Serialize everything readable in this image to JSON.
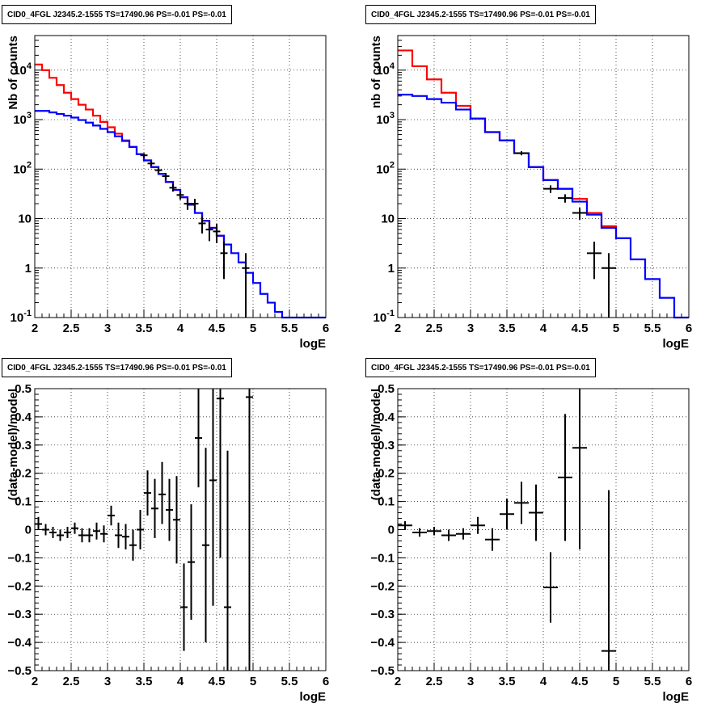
{
  "chart_data": [
    {
      "type": "line",
      "title": "CID0_4FGL J2345.2-1555 TS=17490.96 PS=-0.01 PS=-0.01",
      "xlabel": "logE",
      "ylabel": "Nb of counts",
      "xlim": [
        2,
        6
      ],
      "ylim": [
        0.1,
        50000
      ],
      "ylog": true,
      "grid": true,
      "xticks": [
        "2",
        "2.5",
        "3",
        "3.5",
        "4",
        "4.5",
        "5",
        "5.5",
        "6"
      ],
      "yticks": [
        {
          "v": 0.1,
          "label": "10",
          "sup": "-1"
        },
        {
          "v": 1,
          "label": "1",
          "sup": ""
        },
        {
          "v": 10,
          "label": "10",
          "sup": ""
        },
        {
          "v": 100,
          "label": "10",
          "sup": "2"
        },
        {
          "v": 1000,
          "label": "10",
          "sup": "3"
        },
        {
          "v": 10000,
          "label": "10",
          "sup": "4"
        }
      ],
      "bin_width": 0.1,
      "series": [
        {
          "color": "#ff0000",
          "x_start": 2.0,
          "values": [
            13000,
            10000,
            7000,
            5000,
            3500,
            2600,
            2000,
            1600,
            1200,
            900,
            700,
            520,
            380,
            280,
            200,
            150,
            110,
            80,
            55,
            38,
            27,
            19,
            13,
            9,
            6.5,
            4.5,
            3
          ]
        },
        {
          "color": "#0000ff",
          "x_start": 2.0,
          "values": [
            1500,
            1500,
            1400,
            1300,
            1200,
            1100,
            980,
            870,
            760,
            650,
            560,
            460,
            370,
            280,
            200,
            150,
            110,
            80,
            55,
            38,
            27,
            19,
            13,
            9,
            6.5,
            4.5,
            3,
            2,
            1.3,
            0.8,
            0.5,
            0.3,
            0.2,
            0.13,
            0.1,
            0.1,
            0.1,
            0.1,
            0.1,
            0.1
          ]
        }
      ],
      "points": [
        {
          "x": 3.5,
          "y": 190,
          "lo": 170,
          "hi": 210
        },
        {
          "x": 3.6,
          "y": 130,
          "lo": 115,
          "hi": 145
        },
        {
          "x": 3.7,
          "y": 95,
          "lo": 82,
          "hi": 108
        },
        {
          "x": 3.8,
          "y": 72,
          "lo": 61,
          "hi": 83
        },
        {
          "x": 3.9,
          "y": 42,
          "lo": 35,
          "hi": 50
        },
        {
          "x": 4.0,
          "y": 30,
          "lo": 24,
          "hi": 36
        },
        {
          "x": 4.1,
          "y": 20,
          "lo": 15,
          "hi": 25
        },
        {
          "x": 4.2,
          "y": 20,
          "lo": 15,
          "hi": 25
        },
        {
          "x": 4.3,
          "y": 8,
          "lo": 5,
          "hi": 11
        },
        {
          "x": 4.4,
          "y": 6,
          "lo": 3.5,
          "hi": 8.5
        },
        {
          "x": 4.5,
          "y": 5.5,
          "lo": 3.2,
          "hi": 7.8
        },
        {
          "x": 4.6,
          "y": 2,
          "lo": 0.6,
          "hi": 3.4
        },
        {
          "x": 4.9,
          "y": 1,
          "lo": 0.1,
          "hi": 2
        }
      ]
    },
    {
      "type": "line",
      "title": "CID0_4FGL J2345.2-1555 TS=17490.96 PS=-0.01 PS=-0.01",
      "xlabel": "logE",
      "ylabel": "nb of counts",
      "xlim": [
        2,
        6
      ],
      "ylim": [
        0.1,
        50000
      ],
      "ylog": true,
      "grid": true,
      "xticks": [
        "2",
        "2.5",
        "3",
        "3.5",
        "4",
        "4.5",
        "5",
        "5.5",
        "6"
      ],
      "yticks": [
        {
          "v": 0.1,
          "label": "10",
          "sup": "-1"
        },
        {
          "v": 1,
          "label": "1",
          "sup": ""
        },
        {
          "v": 10,
          "label": "10",
          "sup": ""
        },
        {
          "v": 100,
          "label": "10",
          "sup": "2"
        },
        {
          "v": 1000,
          "label": "10",
          "sup": "3"
        },
        {
          "v": 10000,
          "label": "10",
          "sup": "4"
        }
      ],
      "bin_width": 0.2,
      "series": [
        {
          "color": "#ff0000",
          "x_start": 2.0,
          "values": [
            25000,
            12000,
            6500,
            3500,
            1900,
            1050,
            560,
            380,
            210,
            110,
            60,
            40,
            25,
            13,
            7,
            4
          ]
        },
        {
          "color": "#0000ff",
          "x_start": 2.0,
          "values": [
            3200,
            3000,
            2600,
            2200,
            1600,
            1050,
            560,
            380,
            210,
            110,
            60,
            40,
            22,
            12,
            6.5,
            4,
            1.5,
            0.6,
            0.25,
            0.1
          ]
        }
      ],
      "points": [
        {
          "x": 3.7,
          "y": 210,
          "lo": 190,
          "hi": 230
        },
        {
          "x": 4.1,
          "y": 40,
          "lo": 33,
          "hi": 47
        },
        {
          "x": 4.3,
          "y": 26,
          "lo": 21,
          "hi": 31
        },
        {
          "x": 4.5,
          "y": 13,
          "lo": 9.5,
          "hi": 16.5
        },
        {
          "x": 4.7,
          "y": 2,
          "lo": 0.6,
          "hi": 3.4
        },
        {
          "x": 4.9,
          "y": 1,
          "lo": 0.1,
          "hi": 2
        }
      ]
    },
    {
      "type": "scatter",
      "title": "CID0_4FGL J2345.2-1555 TS=17490.96 PS=-0.01 PS=-0.01",
      "xlabel": "logE",
      "ylabel": "(data-model)/model",
      "xlim": [
        2,
        6
      ],
      "ylim": [
        -0.5,
        0.5
      ],
      "ylog": false,
      "grid": true,
      "xticks": [
        "2",
        "2.5",
        "3",
        "3.5",
        "4",
        "4.5",
        "5",
        "5.5",
        "6"
      ],
      "yticks": [
        {
          "v": -0.5,
          "label": "−0.5"
        },
        {
          "v": -0.4,
          "label": "−0.4"
        },
        {
          "v": -0.3,
          "label": "−0.3"
        },
        {
          "v": -0.2,
          "label": "−0.2"
        },
        {
          "v": -0.1,
          "label": "−0.1"
        },
        {
          "v": 0,
          "label": "0"
        },
        {
          "v": 0.1,
          "label": "0.1"
        },
        {
          "v": 0.2,
          "label": "0.2"
        },
        {
          "v": 0.3,
          "label": "0.3"
        },
        {
          "v": 0.4,
          "label": "0.4"
        },
        {
          "v": 0.5,
          "label": "0.5"
        }
      ],
      "bin_width": 0.1,
      "points": [
        {
          "x": 2.05,
          "y": 0.02,
          "lo": 0.0,
          "hi": 0.045
        },
        {
          "x": 2.15,
          "y": 0.0,
          "lo": -0.02,
          "hi": 0.02
        },
        {
          "x": 2.25,
          "y": -0.01,
          "lo": -0.03,
          "hi": 0.01
        },
        {
          "x": 2.35,
          "y": -0.02,
          "lo": -0.04,
          "hi": 0.0
        },
        {
          "x": 2.45,
          "y": -0.01,
          "lo": -0.03,
          "hi": 0.01
        },
        {
          "x": 2.55,
          "y": 0.005,
          "lo": -0.015,
          "hi": 0.025
        },
        {
          "x": 2.65,
          "y": -0.02,
          "lo": -0.045,
          "hi": 0.005
        },
        {
          "x": 2.75,
          "y": -0.02,
          "lo": -0.045,
          "hi": 0.005
        },
        {
          "x": 2.85,
          "y": -0.005,
          "lo": -0.035,
          "hi": 0.025
        },
        {
          "x": 2.95,
          "y": -0.015,
          "lo": -0.045,
          "hi": 0.015
        },
        {
          "x": 3.05,
          "y": 0.05,
          "lo": 0.015,
          "hi": 0.085
        },
        {
          "x": 3.15,
          "y": -0.02,
          "lo": -0.065,
          "hi": 0.025
        },
        {
          "x": 3.25,
          "y": -0.025,
          "lo": -0.07,
          "hi": 0.02
        },
        {
          "x": 3.35,
          "y": -0.055,
          "lo": -0.11,
          "hi": 0.0
        },
        {
          "x": 3.45,
          "y": 0.0,
          "lo": -0.07,
          "hi": 0.07
        },
        {
          "x": 3.55,
          "y": 0.13,
          "lo": 0.05,
          "hi": 0.21
        },
        {
          "x": 3.65,
          "y": 0.075,
          "lo": -0.03,
          "hi": 0.18
        },
        {
          "x": 3.75,
          "y": 0.125,
          "lo": 0.02,
          "hi": 0.24
        },
        {
          "x": 3.85,
          "y": 0.07,
          "lo": -0.04,
          "hi": 0.18
        },
        {
          "x": 3.95,
          "y": 0.035,
          "lo": -0.12,
          "hi": 0.19
        },
        {
          "x": 4.05,
          "y": -0.275,
          "lo": -0.43,
          "hi": -0.12
        },
        {
          "x": 4.15,
          "y": -0.115,
          "lo": -0.32,
          "hi": 0.09
        },
        {
          "x": 4.25,
          "y": 0.325,
          "lo": 0.15,
          "hi": 0.5
        },
        {
          "x": 4.35,
          "y": -0.055,
          "lo": -0.4,
          "hi": 0.29
        },
        {
          "x": 4.45,
          "y": 0.175,
          "lo": -0.27,
          "hi": 0.5
        },
        {
          "x": 4.55,
          "y": 0.465,
          "lo": -0.1,
          "hi": 0.5
        },
        {
          "x": 4.65,
          "y": -0.275,
          "lo": -0.5,
          "hi": 0.28
        },
        {
          "x": 4.95,
          "y": 0.47,
          "lo": -0.5,
          "hi": 0.5
        }
      ]
    },
    {
      "type": "scatter",
      "title": "CID0_4FGL J2345.2-1555 TS=17490.96 PS=-0.01 PS=-0.01",
      "xlabel": "logE",
      "ylabel": "(data-model)/model",
      "xlim": [
        2,
        6
      ],
      "ylim": [
        -0.5,
        0.5
      ],
      "ylog": false,
      "grid": true,
      "xticks": [
        "2",
        "2.5",
        "3",
        "3.5",
        "4",
        "4.5",
        "5",
        "5.5",
        "6"
      ],
      "yticks": [
        {
          "v": -0.5,
          "label": "−0.5"
        },
        {
          "v": -0.4,
          "label": "−0.4"
        },
        {
          "v": -0.3,
          "label": "−0.3"
        },
        {
          "v": -0.2,
          "label": "−0.2"
        },
        {
          "v": -0.1,
          "label": "−0.1"
        },
        {
          "v": 0,
          "label": "0"
        },
        {
          "v": 0.1,
          "label": "0.1"
        },
        {
          "v": 0.2,
          "label": "0.2"
        },
        {
          "v": 0.3,
          "label": "0.3"
        },
        {
          "v": 0.4,
          "label": "0.4"
        },
        {
          "v": 0.5,
          "label": "0.5"
        }
      ],
      "bin_width": 0.2,
      "points": [
        {
          "x": 2.1,
          "y": 0.015,
          "lo": 0.0,
          "hi": 0.03
        },
        {
          "x": 2.3,
          "y": -0.01,
          "lo": -0.025,
          "hi": 0.005
        },
        {
          "x": 2.5,
          "y": -0.005,
          "lo": -0.02,
          "hi": 0.01
        },
        {
          "x": 2.7,
          "y": -0.02,
          "lo": -0.04,
          "hi": 0.0
        },
        {
          "x": 2.9,
          "y": -0.015,
          "lo": -0.035,
          "hi": 0.005
        },
        {
          "x": 3.1,
          "y": 0.015,
          "lo": -0.015,
          "hi": 0.045
        },
        {
          "x": 3.3,
          "y": -0.035,
          "lo": -0.075,
          "hi": 0.005
        },
        {
          "x": 3.5,
          "y": 0.055,
          "lo": 0.0,
          "hi": 0.11
        },
        {
          "x": 3.7,
          "y": 0.095,
          "lo": 0.02,
          "hi": 0.17
        },
        {
          "x": 3.9,
          "y": 0.06,
          "lo": -0.04,
          "hi": 0.16
        },
        {
          "x": 4.1,
          "y": -0.205,
          "lo": -0.33,
          "hi": -0.08
        },
        {
          "x": 4.3,
          "y": 0.185,
          "lo": -0.04,
          "hi": 0.41
        },
        {
          "x": 4.5,
          "y": 0.29,
          "lo": -0.07,
          "hi": 0.5
        },
        {
          "x": 4.9,
          "y": -0.43,
          "lo": -0.5,
          "hi": 0.14
        }
      ]
    }
  ]
}
